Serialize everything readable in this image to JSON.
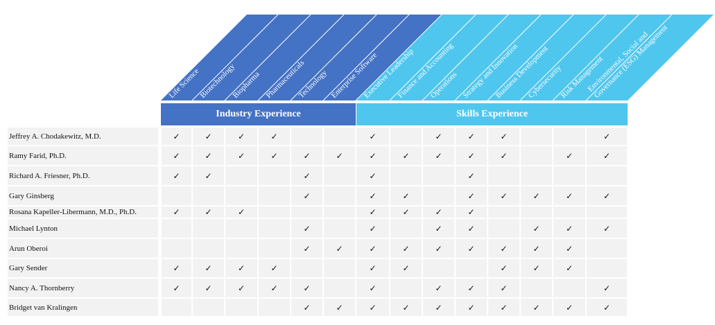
{
  "groups": {
    "industry": "Industry Experience",
    "skills": "Skills Experience"
  },
  "colors": {
    "industry": "#4472c4",
    "skills": "#4fc6ee"
  },
  "check_symbol": "✓",
  "columns": [
    "Life Science",
    "Biotechnology",
    "Biopharma",
    "Pharmaceuticals",
    "Technology",
    "Enterprise Software",
    "Executive Leadership",
    "Finance and Accounting",
    "Operations",
    "Strategy and Innovation",
    "Business Development",
    "Cybersecurity",
    "Risk Management",
    [
      "Environmental, Social and",
      "Governance (ESG) Management"
    ]
  ],
  "rows": [
    {
      "name": "Jeffrey A. Chodakewitz, M.D.",
      "checks": [
        1,
        1,
        1,
        1,
        0,
        0,
        1,
        0,
        1,
        1,
        1,
        0,
        0,
        1
      ]
    },
    {
      "name": "Ramy Farid, Ph.D.",
      "checks": [
        1,
        1,
        1,
        1,
        1,
        1,
        1,
        1,
        1,
        1,
        1,
        0,
        1,
        1
      ]
    },
    {
      "name": "Richard A. Friesner, Ph.D.",
      "checks": [
        1,
        1,
        0,
        0,
        1,
        0,
        1,
        0,
        0,
        1,
        0,
        0,
        0,
        0
      ]
    },
    {
      "name": "Gary Ginsberg",
      "checks": [
        0,
        0,
        0,
        0,
        1,
        0,
        1,
        1,
        0,
        1,
        1,
        1,
        1,
        1
      ]
    },
    {
      "name": "Rosana Kapeller-Libermann, M.D., Ph.D.",
      "checks": [
        1,
        1,
        1,
        0,
        0,
        0,
        1,
        1,
        1,
        1,
        0,
        0,
        0,
        0
      ]
    },
    {
      "name": "Michael Lynton",
      "checks": [
        0,
        0,
        0,
        0,
        1,
        0,
        1,
        0,
        1,
        1,
        0,
        1,
        1,
        1
      ]
    },
    {
      "name": "Arun Oberoi",
      "checks": [
        0,
        0,
        0,
        0,
        1,
        1,
        1,
        1,
        1,
        1,
        1,
        1,
        1,
        0
      ]
    },
    {
      "name": "Gary Sender",
      "checks": [
        1,
        1,
        1,
        1,
        0,
        0,
        1,
        1,
        0,
        0,
        1,
        1,
        1,
        0
      ]
    },
    {
      "name": "Nancy A. Thornberry",
      "checks": [
        1,
        1,
        1,
        1,
        1,
        0,
        1,
        0,
        1,
        1,
        1,
        0,
        0,
        1
      ]
    },
    {
      "name": "Bridget van Kralingen",
      "checks": [
        0,
        0,
        0,
        0,
        1,
        1,
        1,
        1,
        1,
        1,
        1,
        1,
        1,
        1
      ]
    }
  ]
}
